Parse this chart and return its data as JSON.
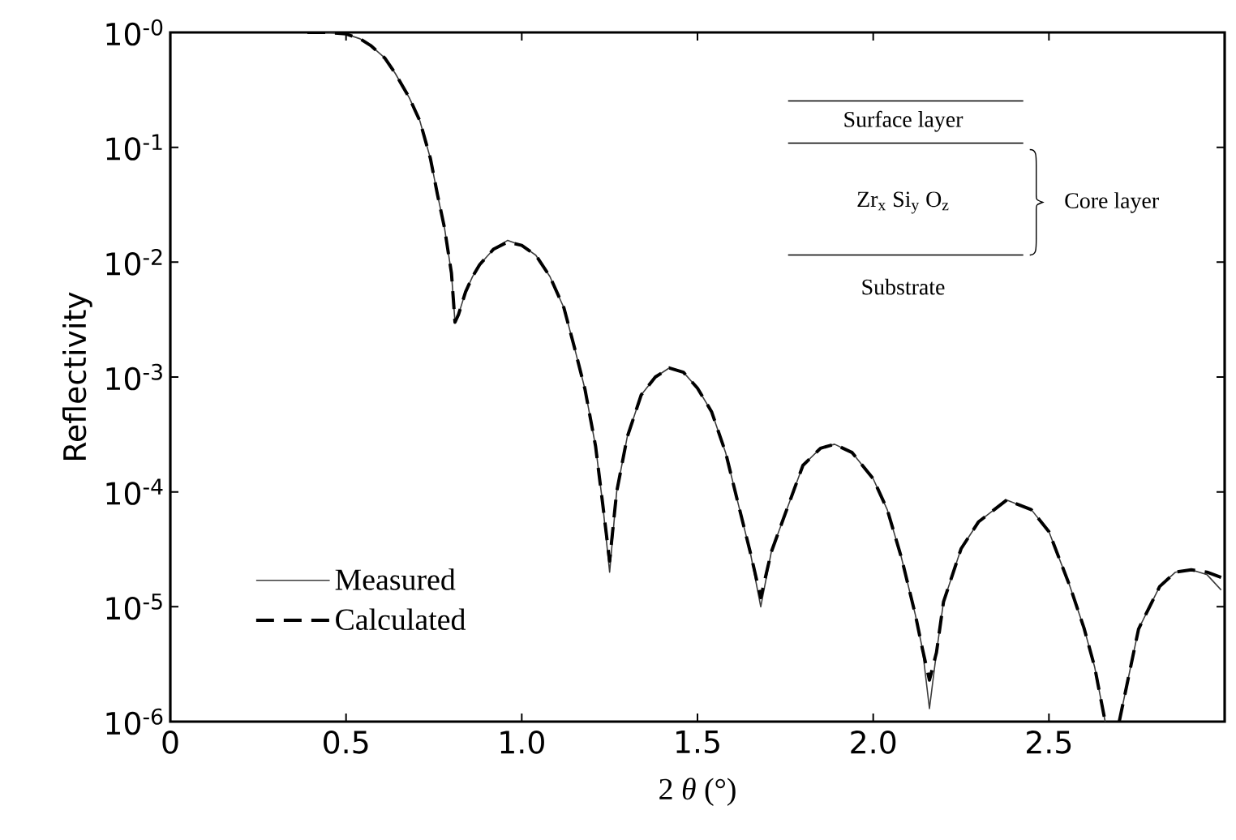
{
  "chart_data": {
    "type": "line",
    "xlabel": "2 *θ* (°)",
    "ylabel": "Reflectivity",
    "log": "y",
    "legend": "bottom left",
    "xlim": [
      0,
      3
    ],
    "ylim": [
      1e-06,
      1
    ],
    "xticks": [
      0,
      0.5,
      {
        "value": 1,
        "label": "1.0"
      },
      1.5,
      {
        "value": 2,
        "label": "2.0"
      },
      2.5
    ],
    "yticks": [
      {
        "value": 1e-06,
        "label": "10$^{-6}$"
      },
      {
        "value": 1e-05,
        "label": "10$^{-5}$"
      },
      {
        "value": 0.0001,
        "label": "10$^{-4}$"
      },
      {
        "value": 0.001,
        "label": "10$^{-3}$"
      },
      {
        "value": 0.01,
        "label": "10$^{-2}$"
      },
      {
        "value": 0.1,
        "label": "10$^{-1}$"
      },
      {
        "value": 1,
        "label": "10$^{-0}$"
      }
    ],
    "x": [
      0.39,
      0.45,
      0.5,
      0.54,
      0.57,
      0.61,
      0.64,
      0.68,
      0.71,
      0.74,
      0.76,
      0.78,
      0.8,
      0.81,
      0.82,
      0.84,
      0.86,
      0.88,
      0.92,
      0.96,
      1.0,
      1.04,
      1.08,
      1.12,
      1.15,
      1.18,
      1.21,
      1.23,
      1.25,
      1.27,
      1.3,
      1.34,
      1.38,
      1.42,
      1.46,
      1.5,
      1.54,
      1.58,
      1.62,
      1.65,
      1.68,
      1.71,
      1.75,
      1.8,
      1.85,
      1.89,
      1.94,
      2.0,
      2.04,
      2.08,
      2.12,
      2.14,
      2.16,
      2.18,
      2.2,
      2.25,
      2.3,
      2.38,
      2.45,
      2.5,
      2.56,
      2.6,
      2.63,
      2.66,
      2.68,
      2.7,
      2.755,
      2.815,
      2.86,
      2.905,
      2.95,
      2.99
    ],
    "series": [
      {
        "name": "Measured",
        "color": "#3c3c3c",
        "line_style": "solid",
        "values": [
          1.0,
          1.0,
          0.97,
          0.88,
          0.77,
          0.6,
          0.44,
          0.27,
          0.17,
          0.08,
          0.039,
          0.02,
          0.008,
          0.003,
          0.0035,
          0.0055,
          0.0075,
          0.0095,
          0.013,
          0.0155,
          0.014,
          0.0115,
          0.0075,
          0.004,
          0.0018,
          0.00078,
          0.00025,
          8e-05,
          2e-05,
          0.0001,
          0.0003,
          0.0007,
          0.001,
          0.0012,
          0.0011,
          0.0008,
          0.0005,
          0.00022,
          7e-05,
          3e-05,
          1e-05,
          3e-05,
          6.5e-05,
          0.00017,
          0.00024,
          0.00026,
          0.00022,
          0.00013,
          7e-05,
          2.7e-05,
          8.5e-06,
          4.3e-06,
          1.3e-06,
          4e-06,
          1.1e-05,
          3.2e-05,
          5.5e-05,
          8.5e-05,
          7e-05,
          4.5e-05,
          1.5e-05,
          6.5e-06,
          3e-06,
          1e-06,
          null,
          1e-06,
          6.4e-06,
          1.5e-05,
          2e-05,
          2.1e-05,
          1.9e-05,
          1.4e-05
        ]
      },
      {
        "name": "Calculated",
        "color": "#000000",
        "line_style": "dashed",
        "values": [
          1.0,
          1.0,
          0.97,
          0.88,
          0.77,
          0.6,
          0.44,
          0.27,
          0.17,
          0.08,
          0.039,
          0.02,
          0.008,
          0.003,
          0.0035,
          0.0055,
          0.0075,
          0.0095,
          0.013,
          0.015,
          0.014,
          0.0115,
          0.0075,
          0.004,
          0.0018,
          0.00078,
          0.00025,
          8e-05,
          2.5e-05,
          0.0001,
          0.0003,
          0.0007,
          0.001,
          0.0012,
          0.0011,
          0.0008,
          0.0005,
          0.00022,
          7e-05,
          3e-05,
          1.2e-05,
          3e-05,
          6.5e-05,
          0.00017,
          0.00024,
          0.00026,
          0.00022,
          0.00013,
          7e-05,
          2.7e-05,
          8.5e-06,
          4.3e-06,
          2.3e-06,
          4e-06,
          1.1e-05,
          3.2e-05,
          5.5e-05,
          8.5e-05,
          7e-05,
          4.5e-05,
          1.5e-05,
          6.5e-06,
          3e-06,
          1e-06,
          null,
          1e-06,
          6.4e-06,
          1.5e-05,
          2e-05,
          2.1e-05,
          2e-05,
          1.8e-05
        ]
      }
    ],
    "annotations": [
      "Surface layer",
      "Zr$_{x}$ Si$_{y}$ O$_{z}$",
      "Core layer",
      "Substrate"
    ]
  }
}
